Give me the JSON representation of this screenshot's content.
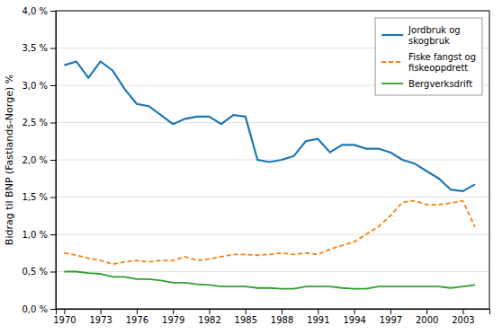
{
  "chart_data": {
    "type": "line",
    "ylabel": "Bidrag til BNP (Fastlands-Norge) %",
    "x": [
      1970,
      1971,
      1972,
      1973,
      1974,
      1975,
      1976,
      1977,
      1978,
      1979,
      1980,
      1981,
      1982,
      1983,
      1984,
      1985,
      1986,
      1987,
      1988,
      1989,
      1990,
      1991,
      1992,
      1993,
      1994,
      1995,
      1996,
      1997,
      1998,
      1999,
      2000,
      2001,
      2002,
      2003,
      2004
    ],
    "series": [
      {
        "name": "Jordbruk og\nskogbruk",
        "line_style": "solid",
        "values": [
          3.27,
          3.32,
          3.1,
          3.32,
          3.2,
          2.95,
          2.75,
          2.72,
          2.6,
          2.48,
          2.55,
          2.58,
          2.58,
          2.48,
          2.6,
          2.58,
          2.0,
          1.97,
          2.0,
          2.05,
          2.25,
          2.28,
          2.1,
          2.2,
          2.2,
          2.15,
          2.15,
          2.1,
          2.0,
          1.95,
          1.85,
          1.75,
          1.6,
          1.58,
          1.67
        ]
      },
      {
        "name": "Fiske fangst og\nfiskeoppdrett",
        "line_style": "dashed",
        "values": [
          0.75,
          0.72,
          0.68,
          0.65,
          0.6,
          0.63,
          0.65,
          0.63,
          0.65,
          0.65,
          0.7,
          0.65,
          0.67,
          0.7,
          0.73,
          0.73,
          0.72,
          0.73,
          0.75,
          0.73,
          0.75,
          0.73,
          0.8,
          0.85,
          0.9,
          1.0,
          1.1,
          1.25,
          1.43,
          1.45,
          1.4,
          1.4,
          1.42,
          1.45,
          1.1
        ]
      },
      {
        "name": "Bergverksdrift",
        "line_style": "solid",
        "values": [
          0.5,
          0.5,
          0.48,
          0.47,
          0.43,
          0.43,
          0.4,
          0.4,
          0.38,
          0.35,
          0.35,
          0.33,
          0.32,
          0.3,
          0.3,
          0.3,
          0.28,
          0.28,
          0.27,
          0.27,
          0.3,
          0.3,
          0.3,
          0.28,
          0.27,
          0.27,
          0.3,
          0.3,
          0.3,
          0.3,
          0.3,
          0.3,
          0.28,
          0.3,
          0.32
        ]
      }
    ],
    "xlim": [
      1969.3,
      2005.2
    ],
    "xticks": [
      1970,
      1973,
      1976,
      1979,
      1982,
      1985,
      1988,
      1991,
      1994,
      1997,
      2000,
      2003
    ],
    "ylim": [
      0.0,
      4.0
    ],
    "yticks": [
      {
        "value": 0.0,
        "label": "0,0 %"
      },
      {
        "value": 0.5,
        "label": "0,5 %"
      },
      {
        "value": 1.0,
        "label": "1,0 %"
      },
      {
        "value": 1.5,
        "label": "1,5 %"
      },
      {
        "value": 2.0,
        "label": "2,0 %"
      },
      {
        "value": 2.5,
        "label": "2,5 %"
      },
      {
        "value": 3.0,
        "label": "3,0 %"
      },
      {
        "value": 3.5,
        "label": "3,5 %"
      },
      {
        "value": 4.0,
        "label": "4,0 %"
      }
    ],
    "grid": true,
    "legend": "upper right"
  }
}
